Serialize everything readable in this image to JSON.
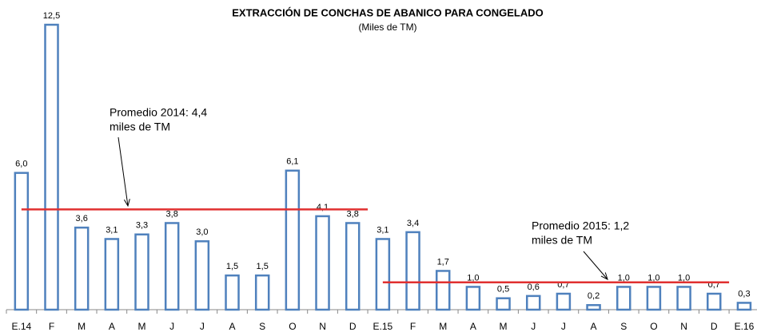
{
  "chart_data": {
    "type": "bar",
    "title": "EXTRACCIÓN DE CONCHAS DE ABANICO PARA CONGELADO",
    "subtitle": "(Miles de TM)",
    "categories": [
      "E.14",
      "F",
      "M",
      "A",
      "M",
      "J",
      "J",
      "A",
      "S",
      "O",
      "N",
      "D",
      "E.15",
      "F",
      "M",
      "A",
      "M",
      "J",
      "J",
      "A",
      "S",
      "O",
      "N",
      "D",
      "E.16"
    ],
    "values": [
      6.0,
      12.5,
      3.6,
      3.1,
      3.3,
      3.8,
      3.0,
      1.5,
      1.5,
      6.1,
      4.1,
      3.8,
      3.1,
      3.4,
      1.7,
      1.0,
      0.5,
      0.6,
      0.7,
      0.2,
      1.0,
      1.0,
      1.0,
      0.7,
      0.3
    ],
    "value_labels": [
      "6,0",
      "12,5",
      "3,6",
      "3,1",
      "3,3",
      "3,8",
      "3,0",
      "1,5",
      "1,5",
      "6,1",
      "4,1",
      "3,8",
      "3,1",
      "3,4",
      "1,7",
      "1,0",
      "0,5",
      "0,6",
      "0,7",
      "0,2",
      "1,0",
      "1,0",
      "1,0",
      "0,7",
      "0,3"
    ],
    "color": "#4f81bd",
    "ylim": [
      0,
      12.5
    ],
    "reference_lines": [
      {
        "value": 4.4,
        "color": "#e03030",
        "label": [
          "Promedio 2014: 4,4",
          "miles de TM"
        ]
      },
      {
        "value": 1.2,
        "color": "#e03030",
        "label": [
          "Promedio  2015: 1,2",
          "miles de TM"
        ]
      }
    ]
  }
}
